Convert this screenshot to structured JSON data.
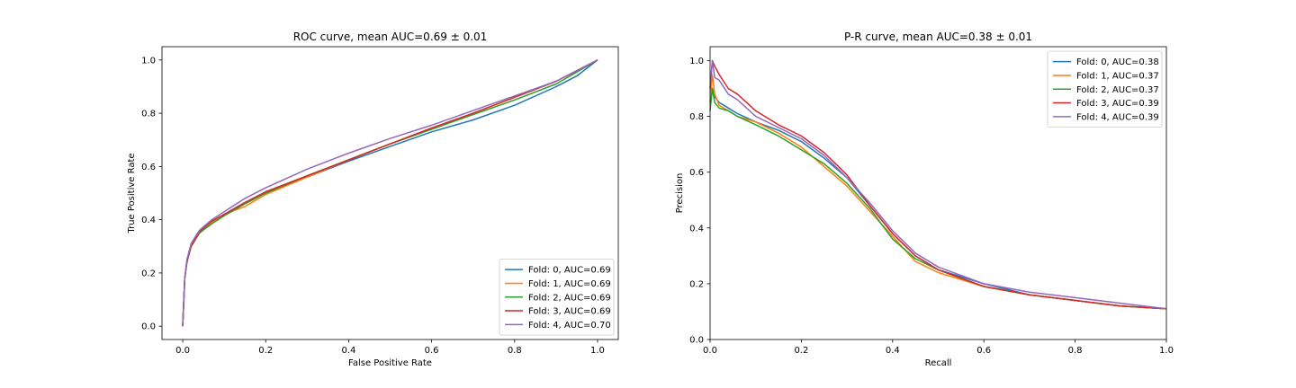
{
  "chart_data": [
    {
      "type": "line",
      "title": "ROC curve, mean AUC=0.69 ± 0.01",
      "xlabel": "False Positive Rate",
      "ylabel": "True Positive Rate",
      "xlim": [
        -0.05,
        1.05
      ],
      "ylim": [
        -0.05,
        1.05
      ],
      "xticks": [
        0.0,
        0.2,
        0.4,
        0.6,
        0.8,
        1.0
      ],
      "yticks": [
        0.0,
        0.2,
        0.4,
        0.6,
        0.8,
        1.0
      ],
      "xtick_labels": [
        "0.0",
        "0.2",
        "0.4",
        "0.6",
        "0.8",
        "1.0"
      ],
      "ytick_labels": [
        "0.0",
        "0.2",
        "0.4",
        "0.6",
        "0.8",
        "1.0"
      ],
      "legend_position": "lower-right",
      "grid": false,
      "series": [
        {
          "name": "Fold: 0, AUC=0.69",
          "color": "#1f77b4",
          "x": [
            0,
            0.005,
            0.01,
            0.02,
            0.04,
            0.07,
            0.1,
            0.15,
            0.2,
            0.3,
            0.4,
            0.5,
            0.6,
            0.7,
            0.8,
            0.9,
            0.95,
            1.0
          ],
          "y": [
            0,
            0.18,
            0.24,
            0.3,
            0.35,
            0.39,
            0.42,
            0.465,
            0.5,
            0.56,
            0.62,
            0.675,
            0.73,
            0.775,
            0.83,
            0.9,
            0.94,
            1.0
          ]
        },
        {
          "name": "Fold: 1, AUC=0.69",
          "color": "#ff7f0e",
          "x": [
            0,
            0.005,
            0.01,
            0.02,
            0.04,
            0.07,
            0.1,
            0.15,
            0.2,
            0.3,
            0.4,
            0.5,
            0.6,
            0.7,
            0.8,
            0.9,
            0.95,
            1.0
          ],
          "y": [
            0,
            0.18,
            0.245,
            0.3,
            0.35,
            0.39,
            0.42,
            0.45,
            0.495,
            0.56,
            0.625,
            0.685,
            0.74,
            0.8,
            0.86,
            0.92,
            0.96,
            1.0
          ]
        },
        {
          "name": "Fold: 2, AUC=0.69",
          "color": "#2ca02c",
          "x": [
            0,
            0.005,
            0.01,
            0.02,
            0.04,
            0.07,
            0.1,
            0.15,
            0.2,
            0.3,
            0.4,
            0.5,
            0.6,
            0.7,
            0.8,
            0.9,
            0.95,
            1.0
          ],
          "y": [
            0,
            0.18,
            0.24,
            0.3,
            0.35,
            0.385,
            0.415,
            0.46,
            0.5,
            0.565,
            0.625,
            0.685,
            0.74,
            0.795,
            0.85,
            0.91,
            0.955,
            1.0
          ]
        },
        {
          "name": "Fold: 3, AUC=0.69",
          "color": "#d62728",
          "x": [
            0,
            0.005,
            0.01,
            0.02,
            0.04,
            0.07,
            0.1,
            0.15,
            0.2,
            0.3,
            0.4,
            0.5,
            0.6,
            0.7,
            0.8,
            0.9,
            0.95,
            1.0
          ],
          "y": [
            0,
            0.18,
            0.245,
            0.3,
            0.355,
            0.395,
            0.42,
            0.465,
            0.505,
            0.565,
            0.625,
            0.685,
            0.745,
            0.8,
            0.86,
            0.92,
            0.96,
            1.0
          ]
        },
        {
          "name": "Fold: 4, AUC=0.70",
          "color": "#9467bd",
          "x": [
            0,
            0.005,
            0.01,
            0.02,
            0.04,
            0.07,
            0.1,
            0.15,
            0.2,
            0.3,
            0.4,
            0.5,
            0.6,
            0.7,
            0.8,
            0.9,
            0.95,
            1.0
          ],
          "y": [
            0,
            0.18,
            0.25,
            0.31,
            0.36,
            0.4,
            0.43,
            0.48,
            0.52,
            0.59,
            0.65,
            0.705,
            0.755,
            0.81,
            0.865,
            0.92,
            0.96,
            1.0
          ]
        }
      ]
    },
    {
      "type": "line",
      "title": "P-R curve, mean AUC=0.38 ± 0.01",
      "xlabel": "Recall",
      "ylabel": "Precision",
      "xlim": [
        0.0,
        1.0
      ],
      "ylim": [
        0.0,
        1.05
      ],
      "xticks": [
        0.0,
        0.2,
        0.4,
        0.6,
        0.8,
        1.0
      ],
      "yticks": [
        0.0,
        0.2,
        0.4,
        0.6,
        0.8,
        1.0
      ],
      "xtick_labels": [
        "0.0",
        "0.2",
        "0.4",
        "0.6",
        "0.8",
        "1.0"
      ],
      "ytick_labels": [
        "0.0",
        "0.2",
        "0.4",
        "0.6",
        "0.8",
        "1.0"
      ],
      "legend_position": "upper-right",
      "grid": false,
      "series": [
        {
          "name": "Fold: 0, AUC=0.38",
          "color": "#1f77b4",
          "x": [
            0.0,
            0.005,
            0.01,
            0.02,
            0.04,
            0.06,
            0.1,
            0.15,
            0.2,
            0.25,
            0.3,
            0.35,
            0.4,
            0.45,
            0.5,
            0.6,
            0.7,
            0.8,
            0.9,
            1.0
          ],
          "y": [
            0.85,
            0.9,
            0.87,
            0.85,
            0.83,
            0.81,
            0.78,
            0.75,
            0.71,
            0.65,
            0.58,
            0.48,
            0.38,
            0.3,
            0.25,
            0.2,
            0.16,
            0.14,
            0.12,
            0.11
          ]
        },
        {
          "name": "Fold: 1, AUC=0.37",
          "color": "#ff7f0e",
          "x": [
            0.0,
            0.005,
            0.01,
            0.02,
            0.04,
            0.06,
            0.1,
            0.15,
            0.2,
            0.25,
            0.3,
            0.35,
            0.4,
            0.45,
            0.5,
            0.6,
            0.7,
            0.8,
            0.9,
            1.0
          ],
          "y": [
            0.85,
            0.95,
            0.88,
            0.84,
            0.82,
            0.8,
            0.78,
            0.74,
            0.69,
            0.62,
            0.55,
            0.46,
            0.37,
            0.28,
            0.24,
            0.19,
            0.16,
            0.14,
            0.12,
            0.11
          ]
        },
        {
          "name": "Fold: 2, AUC=0.37",
          "color": "#2ca02c",
          "x": [
            0.0,
            0.005,
            0.01,
            0.02,
            0.04,
            0.06,
            0.1,
            0.15,
            0.2,
            0.25,
            0.3,
            0.35,
            0.4,
            0.45,
            0.5,
            0.6,
            0.7,
            0.8,
            0.9,
            1.0
          ],
          "y": [
            0.82,
            0.9,
            0.85,
            0.83,
            0.82,
            0.8,
            0.77,
            0.73,
            0.68,
            0.63,
            0.56,
            0.47,
            0.36,
            0.29,
            0.25,
            0.19,
            0.16,
            0.14,
            0.12,
            0.11
          ]
        },
        {
          "name": "Fold: 3, AUC=0.39",
          "color": "#d62728",
          "x": [
            0.0,
            0.005,
            0.01,
            0.02,
            0.04,
            0.06,
            0.1,
            0.15,
            0.2,
            0.25,
            0.3,
            0.35,
            0.4,
            0.45,
            0.5,
            0.6,
            0.7,
            0.8,
            0.9,
            1.0
          ],
          "y": [
            0.9,
            1.0,
            0.98,
            0.95,
            0.9,
            0.88,
            0.82,
            0.77,
            0.73,
            0.67,
            0.59,
            0.48,
            0.38,
            0.3,
            0.25,
            0.19,
            0.16,
            0.14,
            0.12,
            0.11
          ]
        },
        {
          "name": "Fold: 4, AUC=0.39",
          "color": "#9467bd",
          "x": [
            0.0,
            0.005,
            0.01,
            0.02,
            0.04,
            0.06,
            0.1,
            0.15,
            0.2,
            0.25,
            0.3,
            0.35,
            0.4,
            0.45,
            0.5,
            0.6,
            0.7,
            0.8,
            0.9,
            1.0
          ],
          "y": [
            0.9,
            1.0,
            0.94,
            0.93,
            0.88,
            0.86,
            0.8,
            0.76,
            0.72,
            0.66,
            0.58,
            0.49,
            0.39,
            0.31,
            0.26,
            0.2,
            0.17,
            0.15,
            0.13,
            0.11
          ]
        }
      ]
    }
  ]
}
